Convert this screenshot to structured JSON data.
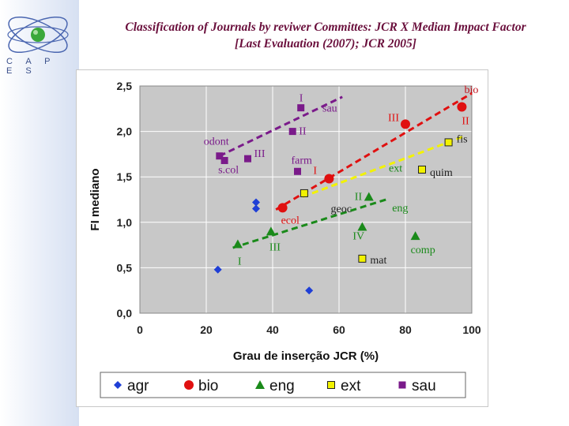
{
  "slide": {
    "title_line1": "Classification of Journals by reviwer Committes: JCR X Median Impact Factor",
    "title_line2": "[Last Evaluation (2007); JCR 2005]",
    "logo_text": "C A P E S"
  },
  "colors": {
    "agr": "#1f3fd6",
    "bio": "#e01010",
    "eng": "#1a8a1a",
    "ext": "#f2f200",
    "sau": "#7a1a8a",
    "plot_bg": "#c8c8c8",
    "title": "#6a0f3c"
  },
  "chart_data": {
    "type": "scatter",
    "xlabel": "Grau de inserção JCR (%)",
    "ylabel": "FI mediano",
    "xlim": [
      0,
      100
    ],
    "ylim": [
      0,
      2.5
    ],
    "xticks": [
      "0",
      "20",
      "40",
      "60",
      "80",
      "100"
    ],
    "yticks": [
      "0,0",
      "0,5",
      "1,0",
      "1,5",
      "2,0",
      "2,5"
    ],
    "grid": true,
    "legend_position": "bottom",
    "series": [
      {
        "name": "agr",
        "marker": "diamond",
        "color": "#1f3fd6",
        "points": [
          {
            "x": 23.5,
            "y": 0.48,
            "label": ""
          },
          {
            "x": 35,
            "y": 1.15,
            "label": ""
          },
          {
            "x": 35,
            "y": 1.22,
            "label": ""
          },
          {
            "x": 51,
            "y": 0.25,
            "label": ""
          }
        ]
      },
      {
        "name": "bio",
        "marker": "circle",
        "color": "#e01010",
        "points": [
          {
            "x": 43,
            "y": 1.16,
            "label": "ecol"
          },
          {
            "x": 57,
            "y": 1.48,
            "label": "I"
          },
          {
            "x": 80,
            "y": 2.08,
            "label": "III"
          },
          {
            "x": 97,
            "y": 2.27,
            "label": "II"
          }
        ]
      },
      {
        "name": "eng",
        "marker": "triangle",
        "color": "#1a8a1a",
        "points": [
          {
            "x": 29.5,
            "y": 0.76,
            "label": "I"
          },
          {
            "x": 39.5,
            "y": 0.9,
            "label": "III"
          },
          {
            "x": 67,
            "y": 0.95,
            "label": "IV"
          },
          {
            "x": 69,
            "y": 1.28,
            "label": "II"
          },
          {
            "x": 83,
            "y": 0.85,
            "label": "comp"
          }
        ]
      },
      {
        "name": "ext",
        "marker": "square",
        "color": "#f2f200",
        "points": [
          {
            "x": 49.5,
            "y": 1.32,
            "label": ""
          },
          {
            "x": 67,
            "y": 0.6,
            "label": "mat"
          },
          {
            "x": 85,
            "y": 1.58,
            "label": "quim"
          },
          {
            "x": 93,
            "y": 1.88,
            "label": "fis"
          }
        ]
      },
      {
        "name": "sau",
        "marker": "square",
        "color": "#7a1a8a",
        "points": [
          {
            "x": 24,
            "y": 1.73,
            "label": "odont"
          },
          {
            "x": 25.5,
            "y": 1.68,
            "label": "s.col"
          },
          {
            "x": 32.5,
            "y": 1.7,
            "label": "III"
          },
          {
            "x": 47.5,
            "y": 1.56,
            "label": "farm"
          },
          {
            "x": 46,
            "y": 2.0,
            "label": "II"
          },
          {
            "x": 48.5,
            "y": 2.26,
            "label": "I"
          }
        ]
      }
    ],
    "trendlines": [
      {
        "series": "bio",
        "color": "#e01010",
        "x": [
          41,
          100
        ],
        "y": [
          1.14,
          2.42
        ]
      },
      {
        "series": "ext",
        "color": "#f2f200",
        "x": [
          49,
          98
        ],
        "y": [
          1.28,
          1.95
        ]
      },
      {
        "series": "eng",
        "color": "#1a8a1a",
        "x": [
          28,
          75
        ],
        "y": [
          0.72,
          1.26
        ]
      },
      {
        "series": "sau",
        "color": "#7a1a8a",
        "x": [
          24,
          61
        ],
        "y": [
          1.73,
          2.38
        ]
      }
    ],
    "annotations": [
      {
        "text": "bio",
        "x": 102,
        "y": 2.42,
        "color": "#c0101a"
      },
      {
        "text": "sau",
        "x": 55,
        "y": 2.22,
        "color": "#7a1a8a"
      },
      {
        "text": "ext",
        "x": 75,
        "y": 1.56,
        "color": "#1a8a1a"
      },
      {
        "text": "eng",
        "x": 76,
        "y": 1.12,
        "color": "#1a8a1a"
      },
      {
        "text": "geoc",
        "x": 57.5,
        "y": 1.11,
        "color": "#222222"
      }
    ]
  }
}
